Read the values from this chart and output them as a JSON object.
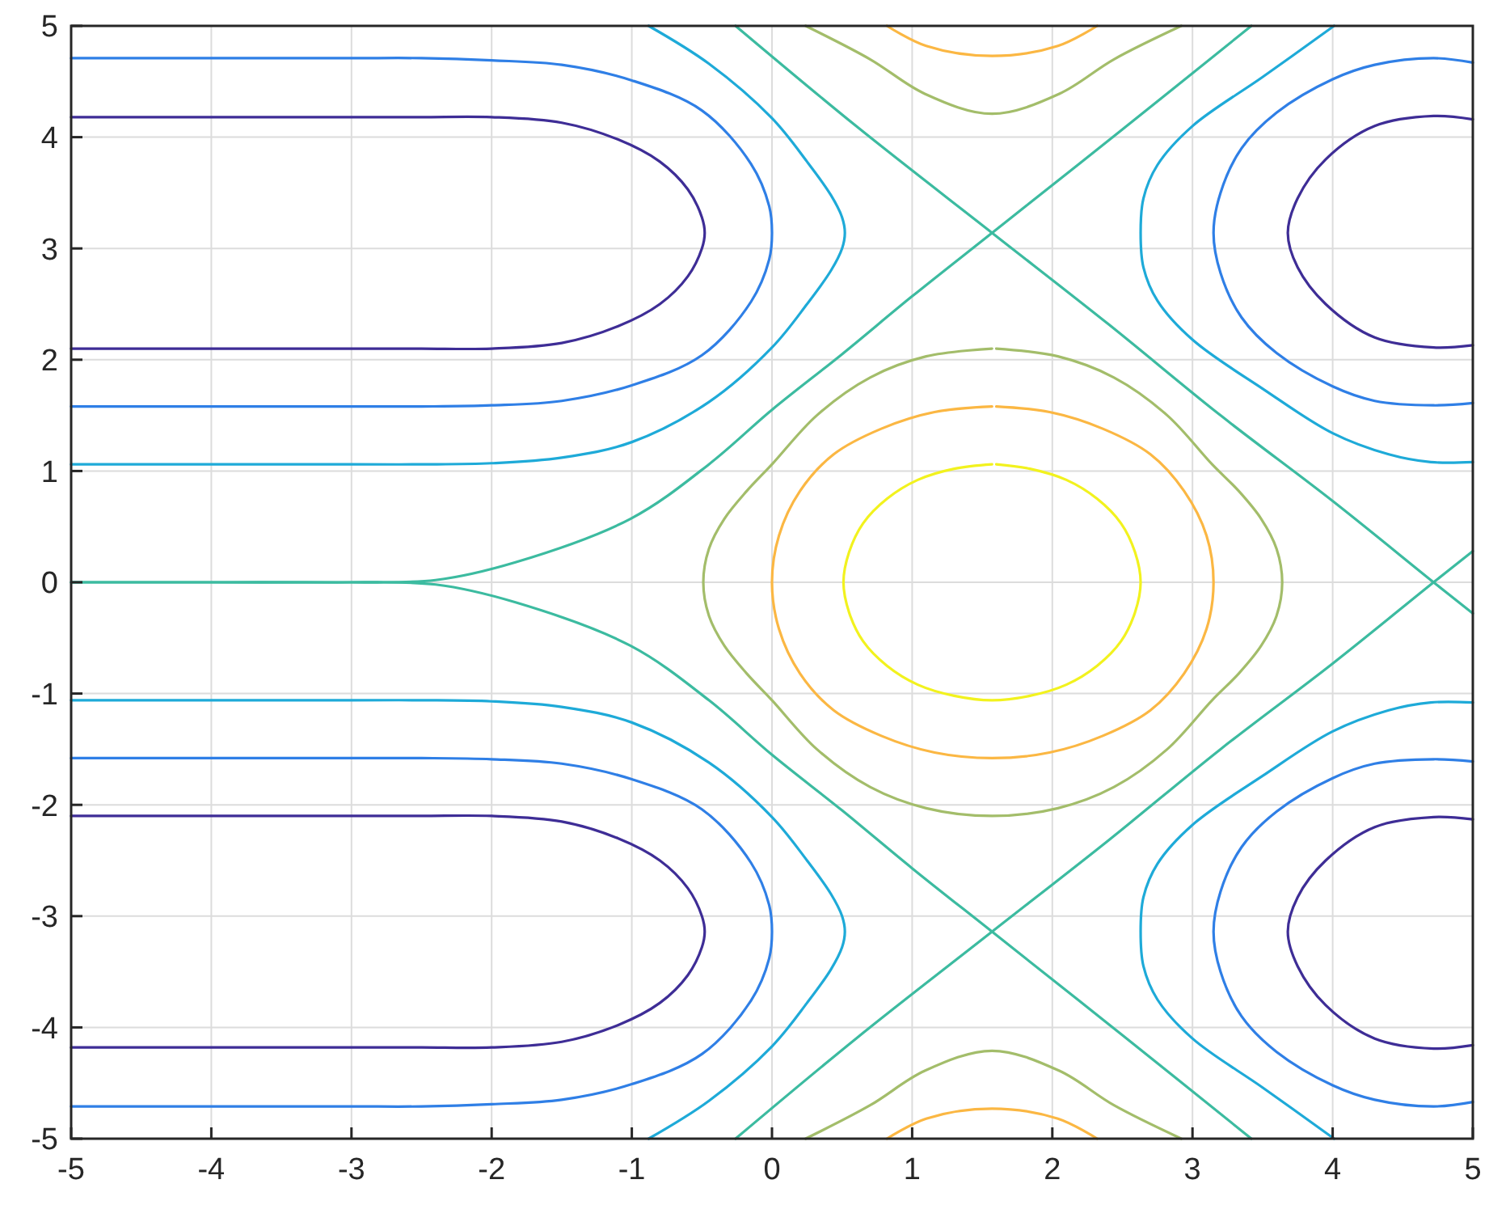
{
  "chart_data": {
    "type": "line",
    "xlim": [
      -5,
      5
    ],
    "ylim": [
      -5,
      5
    ],
    "xticks": [
      -5,
      -4,
      -3,
      -2,
      -1,
      0,
      1,
      2,
      3,
      4,
      5
    ],
    "yticks": [
      -5,
      -4,
      -3,
      -2,
      -1,
      0,
      1,
      2,
      3,
      4,
      5
    ],
    "grid": true,
    "marker": "none",
    "line_style": "solid",
    "series": [
      {
        "color": "#3e2d96",
        "x": [
          -5,
          -4,
          -3,
          -2.5,
          -2,
          -1.5,
          -1.1,
          -0.8,
          -0.6,
          -0.5,
          -0.48,
          -0.5,
          -0.6,
          -0.8,
          -1.1,
          -1.5,
          -2,
          -2.5,
          -3,
          -4,
          -5
        ],
        "values": [
          2.1,
          2.1,
          2.1,
          2.1,
          2.1,
          2.15,
          2.3,
          2.5,
          2.75,
          3.0,
          3.14,
          3.28,
          3.53,
          3.78,
          3.98,
          4.13,
          4.18,
          4.18,
          4.18,
          4.18,
          4.18
        ]
      },
      {
        "color": "#3e2d96",
        "x": [
          -5,
          -4,
          -3,
          -2.5,
          -2,
          -1.5,
          -1.1,
          -0.8,
          -0.6,
          -0.5,
          -0.48,
          -0.5,
          -0.6,
          -0.8,
          -1.1,
          -1.5,
          -2,
          -2.5,
          -3,
          -4,
          -5
        ],
        "values": [
          -2.1,
          -2.1,
          -2.1,
          -2.1,
          -2.1,
          -2.15,
          -2.3,
          -2.5,
          -2.75,
          -3.0,
          -3.14,
          -3.28,
          -3.53,
          -3.78,
          -3.98,
          -4.13,
          -4.18,
          -4.18,
          -4.18,
          -4.18,
          -4.18
        ]
      },
      {
        "color": "#2f7fe6",
        "x": [
          -5,
          -4,
          -3,
          -2.5,
          -2,
          -1.5,
          -1,
          -0.5,
          -0.15,
          -0.02,
          0,
          -0.02,
          -0.15,
          -0.5,
          -1,
          -1.5,
          -2,
          -2.5,
          -3,
          -4,
          -5
        ],
        "values": [
          1.58,
          1.58,
          1.58,
          1.58,
          1.59,
          1.63,
          1.77,
          2.04,
          2.52,
          2.9,
          3.14,
          3.38,
          3.76,
          4.24,
          4.51,
          4.65,
          4.69,
          4.71,
          4.71,
          4.71,
          4.71
        ]
      },
      {
        "color": "#2f7fe6",
        "x": [
          -5,
          -4,
          -3,
          -2.5,
          -2,
          -1.5,
          -1,
          -0.5,
          -0.15,
          -0.02,
          0,
          -0.02,
          -0.15,
          -0.5,
          -1,
          -1.5,
          -2,
          -2.5,
          -3,
          -4,
          -5
        ],
        "values": [
          -1.58,
          -1.58,
          -1.58,
          -1.58,
          -1.59,
          -1.63,
          -1.77,
          -2.04,
          -2.52,
          -2.9,
          -3.14,
          -3.38,
          -3.76,
          -4.24,
          -4.51,
          -4.65,
          -4.69,
          -4.71,
          -4.71,
          -4.71,
          -4.71
        ]
      },
      {
        "color": "#1eaad8",
        "x": [
          -5,
          -4,
          -3,
          -2.5,
          -2,
          -1.5,
          -1,
          -0.45,
          0,
          0.25,
          0.42,
          0.5,
          0.52,
          0.5,
          0.42,
          0.25,
          0,
          -0.45,
          -0.88
        ],
        "values": [
          1.06,
          1.06,
          1.06,
          1.06,
          1.07,
          1.12,
          1.26,
          1.62,
          2.11,
          2.5,
          2.8,
          3.0,
          3.14,
          3.28,
          3.48,
          3.78,
          4.17,
          4.66,
          5
        ]
      },
      {
        "color": "#1eaad8",
        "x": [
          -5,
          -4,
          -3,
          -2.5,
          -2,
          -1.5,
          -1,
          -0.45,
          0,
          0.25,
          0.42,
          0.5,
          0.52,
          0.5,
          0.42,
          0.25,
          0,
          -0.45,
          -0.88
        ],
        "values": [
          -1.06,
          -1.06,
          -1.06,
          -1.06,
          -1.07,
          -1.12,
          -1.26,
          -1.62,
          -2.11,
          -2.5,
          -2.8,
          -3.0,
          -3.14,
          -3.28,
          -3.48,
          -3.78,
          -4.17,
          -4.66,
          -5
        ]
      },
      {
        "color": "#3e2d96",
        "x": [
          5,
          4.72,
          4.3,
          3.95,
          3.75,
          3.68,
          3.75,
          3.95,
          4.3,
          4.72,
          5
        ],
        "values": [
          4.16,
          4.19,
          4.1,
          3.8,
          3.45,
          3.14,
          2.83,
          2.5,
          2.2,
          2.11,
          2.13
        ]
      },
      {
        "color": "#3e2d96",
        "x": [
          5,
          4.72,
          4.3,
          3.95,
          3.75,
          3.68,
          3.75,
          3.95,
          4.3,
          4.72,
          5
        ],
        "values": [
          -4.16,
          -4.19,
          -4.1,
          -3.8,
          -3.45,
          -3.14,
          -2.83,
          -2.5,
          -2.2,
          -2.11,
          -2.13
        ]
      },
      {
        "color": "#2f7fe6",
        "x": [
          5,
          4.72,
          4.3,
          4,
          3.6,
          3.35,
          3.2,
          3.15,
          3.2,
          3.35,
          3.6,
          4,
          4.3,
          4.72,
          5
        ],
        "values": [
          4.67,
          4.71,
          4.65,
          4.52,
          4.22,
          3.9,
          3.5,
          3.14,
          2.78,
          2.38,
          2.06,
          1.76,
          1.63,
          1.59,
          1.61
        ]
      },
      {
        "color": "#2f7fe6",
        "x": [
          5,
          4.72,
          4.3,
          4,
          3.6,
          3.35,
          3.2,
          3.15,
          3.2,
          3.35,
          3.6,
          4,
          4.3,
          4.72,
          5
        ],
        "values": [
          -4.67,
          -4.71,
          -4.65,
          -4.52,
          -4.22,
          -3.9,
          -3.5,
          -3.14,
          -2.78,
          -2.38,
          -2.06,
          -1.76,
          -1.63,
          -1.59,
          -1.61
        ]
      },
      {
        "color": "#1eaad8",
        "x": [
          4.01,
          3.5,
          3.0,
          2.75,
          2.65,
          2.63,
          2.65,
          2.75,
          3.0,
          3.5,
          4.0,
          4.4,
          4.7,
          5
        ],
        "values": [
          5,
          4.54,
          4.1,
          3.75,
          3.45,
          3.14,
          2.83,
          2.53,
          2.18,
          1.74,
          1.34,
          1.15,
          1.08,
          1.08
        ]
      },
      {
        "color": "#1eaad8",
        "x": [
          4.01,
          3.5,
          3.0,
          2.75,
          2.65,
          2.63,
          2.65,
          2.75,
          3.0,
          3.5,
          4.0,
          4.4,
          4.7,
          5
        ],
        "values": [
          -5,
          -4.54,
          -4.1,
          -3.75,
          -3.45,
          -3.14,
          -2.83,
          -2.53,
          -2.18,
          -1.74,
          -1.34,
          -1.15,
          -1.08,
          -1.08
        ]
      },
      {
        "color": "#f2f21e",
        "x": [
          1.57,
          1.3,
          1.04,
          0.82,
          0.65,
          0.55,
          0.51,
          0.55,
          0.65,
          0.82,
          1.04,
          1.3,
          1.57,
          1.84,
          2.1,
          2.32,
          2.49,
          2.59,
          2.63,
          2.59,
          2.49,
          2.32,
          2.1,
          1.84,
          1.6
        ],
        "values": [
          1.06,
          1.02,
          0.92,
          0.75,
          0.53,
          0.27,
          0,
          -0.27,
          -0.53,
          -0.75,
          -0.92,
          -1.02,
          -1.06,
          -1.02,
          -0.92,
          -0.75,
          -0.53,
          -0.27,
          0,
          0.27,
          0.53,
          0.75,
          0.92,
          1.02,
          1.06
        ]
      },
      {
        "color": "#fbb743",
        "x": [
          1.57,
          1.16,
          0.78,
          0.44,
          0.2,
          0.05,
          0,
          0.05,
          0.2,
          0.44,
          0.78,
          1.16,
          1.57,
          1.98,
          2.36,
          2.7,
          2.94,
          3.1,
          3.15,
          3.1,
          2.94,
          2.7,
          2.36,
          1.98,
          1.6
        ],
        "values": [
          1.58,
          1.53,
          1.38,
          1.15,
          0.82,
          0.42,
          0,
          -0.42,
          -0.82,
          -1.15,
          -1.38,
          -1.53,
          -1.58,
          -1.53,
          -1.38,
          -1.15,
          -0.82,
          -0.42,
          0,
          0.42,
          0.82,
          1.15,
          1.38,
          1.53,
          1.58
        ]
      },
      {
        "color": "#a3bd6a",
        "x": [
          1.57,
          1.1,
          0.7,
          0.32,
          0,
          -0.18,
          -0.34,
          -0.45,
          -0.49,
          -0.45,
          -0.34,
          -0.18,
          0,
          0.32,
          0.7,
          1.1,
          1.57,
          2.04,
          2.44,
          2.82,
          3.14,
          3.33,
          3.49,
          3.6,
          3.64,
          3.6,
          3.49,
          3.33,
          3.14,
          2.82,
          2.44,
          2.04,
          1.6
        ],
        "values": [
          2.1,
          2.03,
          1.84,
          1.5,
          1.06,
          0.82,
          0.57,
          0.3,
          0,
          -0.3,
          -0.57,
          -0.82,
          -1.06,
          -1.5,
          -1.84,
          -2.03,
          -2.1,
          -2.03,
          -1.84,
          -1.5,
          -1.06,
          -0.82,
          -0.57,
          -0.3,
          0,
          0.3,
          0.57,
          0.82,
          1.06,
          1.5,
          1.84,
          2.03,
          2.1
        ]
      },
      {
        "color": "#fbb743",
        "x": [
          0.82,
          1.1,
          1.57,
          2.04,
          2.32
        ],
        "values": [
          5,
          4.82,
          4.73,
          4.82,
          5
        ]
      },
      {
        "color": "#fbb743",
        "x": [
          0.82,
          1.1,
          1.57,
          2.04,
          2.32
        ],
        "values": [
          -5,
          -4.82,
          -4.73,
          -4.82,
          -5
        ]
      },
      {
        "color": "#a3bd6a",
        "x": [
          0.24,
          0.7,
          1.09,
          1.57,
          2.05,
          2.44,
          2.92
        ],
        "values": [
          5,
          4.7,
          4.39,
          4.21,
          4.39,
          4.7,
          5
        ]
      },
      {
        "color": "#a3bd6a",
        "x": [
          0.24,
          0.7,
          1.09,
          1.57,
          2.05,
          2.44,
          2.92
        ],
        "values": [
          -5,
          -4.7,
          -4.39,
          -4.21,
          -4.39,
          -4.7,
          -5
        ]
      },
      {
        "color": "#3cbba0",
        "x": [
          -5,
          -4,
          -3,
          -2.4,
          -1.83,
          -1.01,
          -0.45,
          0,
          0.5,
          1.0,
          1.57,
          2.5,
          3.42
        ],
        "values": [
          0,
          0,
          0,
          0.02,
          0.18,
          0.57,
          1.06,
          1.55,
          2.05,
          2.57,
          3.14,
          4.07,
          5
        ]
      },
      {
        "color": "#3cbba0",
        "x": [
          -5,
          -4,
          -3,
          -2.4,
          -1.83,
          -1.01,
          -0.45,
          0,
          0.5,
          1.0,
          1.57,
          2.5,
          3.42
        ],
        "values": [
          0,
          0,
          0,
          -0.02,
          -0.18,
          -0.57,
          -1.06,
          -1.55,
          -2.05,
          -2.57,
          -3.14,
          -4.07,
          -5
        ]
      },
      {
        "color": "#3cbba0",
        "x": [
          -0.26,
          0.6,
          1.57,
          2.4,
          3.2,
          4.0,
          4.72,
          5
        ],
        "values": [
          5,
          4.1,
          3.14,
          2.32,
          1.5,
          0.73,
          0,
          -0.28
        ]
      },
      {
        "color": "#3cbba0",
        "x": [
          -0.26,
          0.6,
          1.57,
          2.4,
          3.2,
          4.0,
          4.72,
          5
        ],
        "values": [
          -5,
          -4.1,
          -3.14,
          -2.32,
          -1.5,
          -0.73,
          0,
          0.28
        ]
      }
    ]
  }
}
